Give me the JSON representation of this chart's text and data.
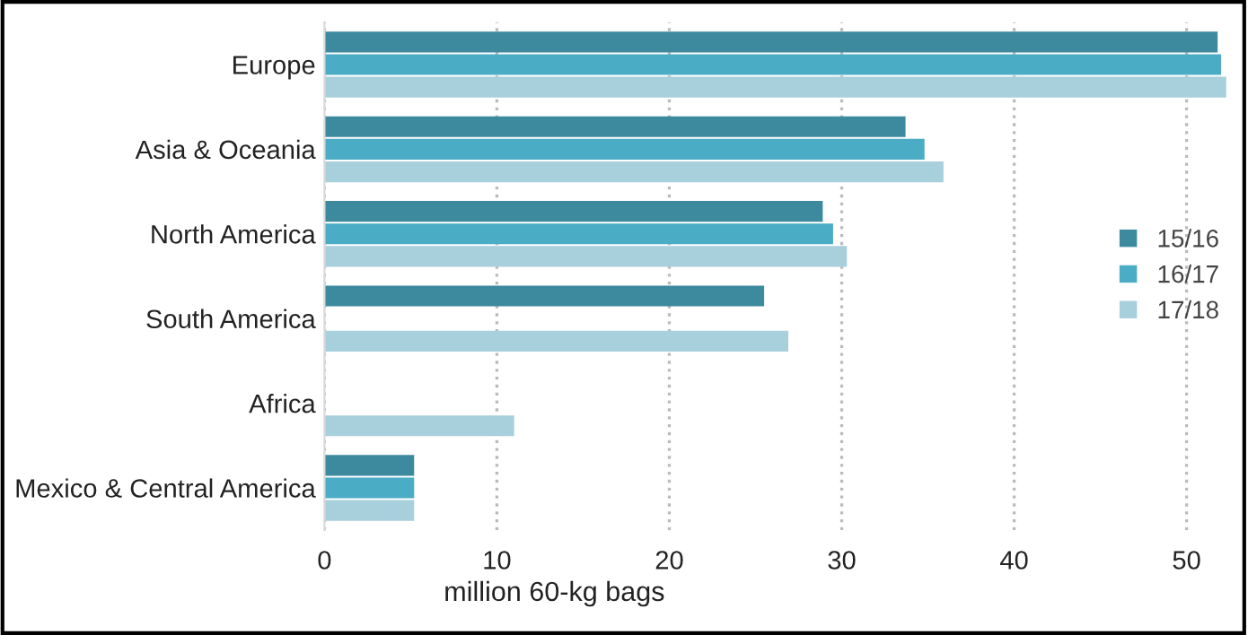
{
  "chart_data": {
    "type": "bar",
    "orientation": "horizontal",
    "xlabel": "million 60-kg bags",
    "categories": [
      "Europe",
      "Asia & Oceania",
      "North America",
      "South America",
      "Africa",
      "Mexico & Central America"
    ],
    "series": [
      {
        "name": "15/16",
        "color": "#3d8a9f",
        "values": [
          51.8,
          33.7,
          28.9,
          25.5,
          null,
          5.2
        ]
      },
      {
        "name": "16/17",
        "color": "#4bacc6",
        "values": [
          52.0,
          34.8,
          29.5,
          null,
          null,
          5.2
        ]
      },
      {
        "name": "17/18",
        "color": "#a8cfdc",
        "values": [
          52.3,
          35.9,
          30.3,
          26.9,
          11.0,
          5.2
        ]
      }
    ],
    "xlim": [
      0,
      53.2
    ],
    "xticks": [
      0,
      10,
      20,
      30,
      40,
      50
    ],
    "grid": "x",
    "legend": "right"
  }
}
